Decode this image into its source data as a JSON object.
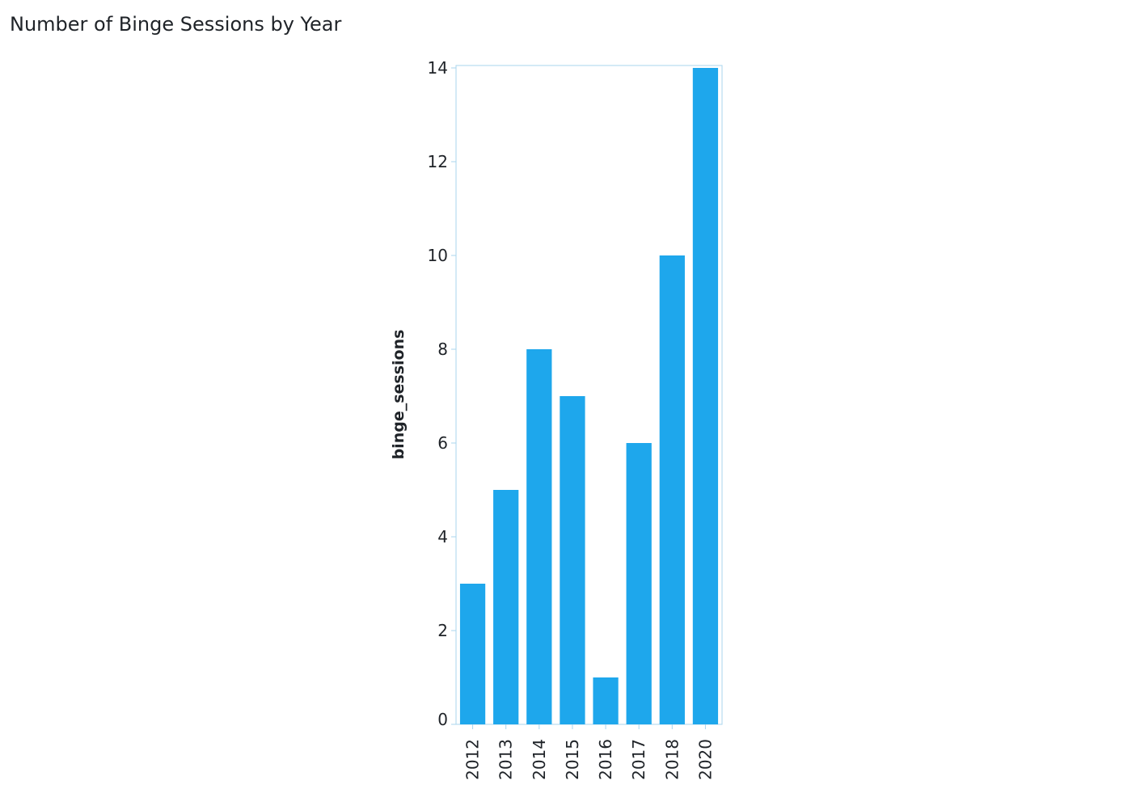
{
  "chart_data": {
    "type": "bar",
    "title": "Number of Binge Sessions by Year",
    "xlabel": "",
    "ylabel": "binge_sessions",
    "categories": [
      "2012",
      "2013",
      "2014",
      "2015",
      "2016",
      "2017",
      "2018",
      "2020"
    ],
    "values": [
      3,
      5,
      8,
      7,
      1,
      6,
      10,
      14
    ],
    "ylim": [
      0,
      14
    ],
    "yticks": [
      0,
      2,
      4,
      6,
      8,
      10,
      12,
      14
    ],
    "grid": false,
    "legend": "none",
    "bar_color": "#1ea7ec",
    "axis_color": "#a9d5ee"
  }
}
